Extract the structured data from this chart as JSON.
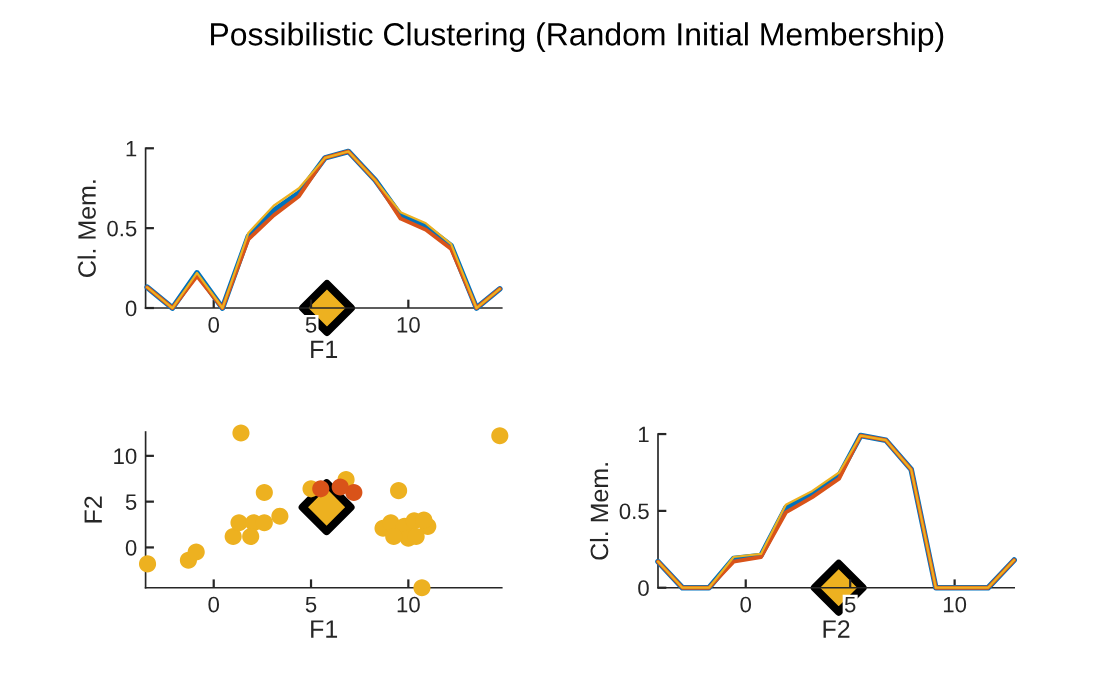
{
  "chart_data": [
    {
      "type": "line",
      "title": "Possibilistic Clustering (Random Initial Membership)",
      "xlabel": "F1",
      "ylabel": "Cl. Mem.",
      "xlim": [
        -3.5,
        14.8
      ],
      "ylim": [
        0,
        1
      ],
      "xticks": [
        0,
        5,
        10
      ],
      "yticks": [
        0,
        0.5,
        1
      ],
      "grid": false,
      "legend": false,
      "marker": "none",
      "line_style": "solid",
      "series": [
        {
          "color": "#0072bd",
          "x": [
            -3.42,
            -2.12,
            -0.86,
            0.45,
            1.78,
            3.08,
            4.38,
            5.72,
            6.92,
            8.3,
            9.6,
            10.9,
            12.2,
            13.5,
            14.7
          ],
          "values": [
            0.13,
            0,
            0.22,
            0,
            0.45,
            0.61,
            0.72,
            0.94,
            0.98,
            0.8,
            0.58,
            0.51,
            0.39,
            0,
            0.12
          ]
        },
        {
          "color": "#d95319",
          "x": [
            -3.42,
            -2.12,
            -0.86,
            0.45,
            1.78,
            3.08,
            4.38,
            5.72,
            6.92,
            8.3,
            9.6,
            10.9,
            12.2,
            13.5,
            14.7
          ],
          "values": [
            0.13,
            0,
            0.2,
            0,
            0.43,
            0.58,
            0.7,
            0.94,
            0.98,
            0.8,
            0.56,
            0.49,
            0.37,
            0,
            0.12
          ]
        },
        {
          "color": "#edb120",
          "x": [
            -3.42,
            -2.12,
            -0.86,
            0.45,
            1.78,
            3.08,
            4.38,
            5.72,
            6.92,
            8.3,
            9.6,
            10.9,
            12.2,
            13.5,
            14.7
          ],
          "values": [
            0.13,
            0,
            0.22,
            0,
            0.47,
            0.64,
            0.75,
            0.94,
            0.98,
            0.8,
            0.6,
            0.53,
            0.4,
            0,
            0.12
          ]
        },
        {
          "type": "scatter",
          "marker": "diamond",
          "color": "#edb120",
          "x": [
            5.82
          ],
          "values": [
            0
          ]
        }
      ]
    },
    {
      "type": "scatter",
      "xlabel": "F1",
      "ylabel": "F2",
      "xlim": [
        -3.5,
        14.8
      ],
      "ylim": [
        -4.4,
        12.6
      ],
      "xticks": [
        0,
        5,
        10
      ],
      "yticks": [
        0,
        5,
        10
      ],
      "grid": false,
      "legend": false,
      "marker": "circle",
      "series": [
        {
          "color": "#edb120",
          "x": [
            -3.4,
            -1.3,
            -0.9,
            1.4,
            14.7,
            10.7,
            2.6,
            9.5,
            6.8,
            5.0,
            1.0,
            1.3,
            2.05,
            3.4,
            2.6,
            1.9,
            8.7,
            9.1,
            9.8,
            10.0,
            10.3,
            11.0,
            9.25,
            10.4,
            10.8
          ],
          "values": [
            -1.8,
            -1.4,
            -0.5,
            12.5,
            12.2,
            -4.4,
            6.0,
            6.2,
            7.4,
            6.4,
            1.2,
            2.7,
            2.7,
            3.4,
            2.7,
            1.2,
            2.1,
            2.7,
            2.3,
            1.0,
            2.9,
            2.3,
            1.2,
            1.2,
            3.0
          ]
        },
        {
          "color": "#d95319",
          "x": [
            5.5,
            7.2,
            6.5
          ],
          "values": [
            6.4,
            6.0,
            6.6
          ]
        },
        {
          "type": "scatter",
          "marker": "diamond",
          "color": "#edb120",
          "x": [
            5.8
          ],
          "values": [
            4.4
          ]
        }
      ]
    },
    {
      "type": "line",
      "xlabel": "F2",
      "ylabel": "Cl. Mem.",
      "xlim": [
        -4.2,
        12.85
      ],
      "ylim": [
        0,
        1
      ],
      "xticks": [
        0,
        5,
        10
      ],
      "yticks": [
        0,
        0.5,
        1
      ],
      "grid": false,
      "legend": false,
      "marker": "none",
      "line_style": "solid",
      "series": [
        {
          "color": "#0072bd",
          "x": [
            -4.2,
            -3.03,
            -1.76,
            -0.58,
            0.73,
            1.92,
            3.19,
            4.47,
            5.5,
            6.71,
            7.92,
            9.1,
            10.38,
            11.6,
            12.85
          ],
          "values": [
            0.17,
            0,
            0,
            0.19,
            0.21,
            0.52,
            0.61,
            0.73,
            0.99,
            0.96,
            0.77,
            0,
            0,
            0,
            0.18
          ]
        },
        {
          "color": "#d95319",
          "x": [
            -4.2,
            -3.03,
            -1.76,
            -0.58,
            0.73,
            1.92,
            3.19,
            4.47,
            5.5,
            6.71,
            7.92,
            9.1,
            10.38,
            11.6,
            12.85
          ],
          "values": [
            0.17,
            0,
            0,
            0.17,
            0.2,
            0.49,
            0.59,
            0.71,
            0.99,
            0.96,
            0.77,
            0,
            0,
            0,
            0.18
          ]
        },
        {
          "color": "#edb120",
          "x": [
            -4.2,
            -3.03,
            -1.76,
            -0.58,
            0.73,
            1.92,
            3.19,
            4.47,
            5.5,
            6.71,
            7.92,
            9.1,
            10.38,
            11.6,
            12.85
          ],
          "values": [
            0.17,
            0,
            0,
            0.2,
            0.22,
            0.54,
            0.63,
            0.75,
            0.99,
            0.96,
            0.77,
            0,
            0,
            0,
            0.18
          ]
        },
        {
          "type": "scatter",
          "marker": "diamond",
          "color": "#edb120",
          "x": [
            4.45
          ],
          "values": [
            0
          ]
        }
      ]
    }
  ]
}
